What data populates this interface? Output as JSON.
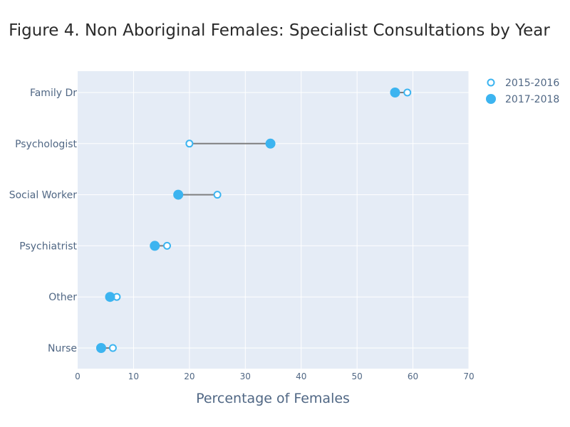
{
  "chart_data": {
    "type": "scatter",
    "title": "Figure 4. Non Aboriginal Females: Specialist Consultations by Year",
    "xlabel": "Percentage of Females",
    "ylabel": "",
    "xlim": [
      0,
      70
    ],
    "xticks": [
      0,
      10,
      20,
      30,
      40,
      50,
      60,
      70
    ],
    "grid": true,
    "legend_position": "top-right",
    "categories": [
      "Family Dr",
      "Psychologist",
      "Social Worker",
      "Psychiatrist",
      "Other",
      "Nurse"
    ],
    "series": [
      {
        "name": "2015-2016",
        "marker": "open-circle",
        "values": [
          59.0,
          20.0,
          25.0,
          16.0,
          7.0,
          6.3
        ]
      },
      {
        "name": "2017-2018",
        "marker": "filled-circle",
        "values": [
          56.8,
          34.5,
          18.0,
          13.8,
          5.8,
          4.2
        ]
      }
    ],
    "colors": {
      "marker": "#3cb4f0",
      "connector": "#7f7f7f",
      "plot_bg": "#e5ecf6",
      "grid": "#ffffff"
    }
  }
}
